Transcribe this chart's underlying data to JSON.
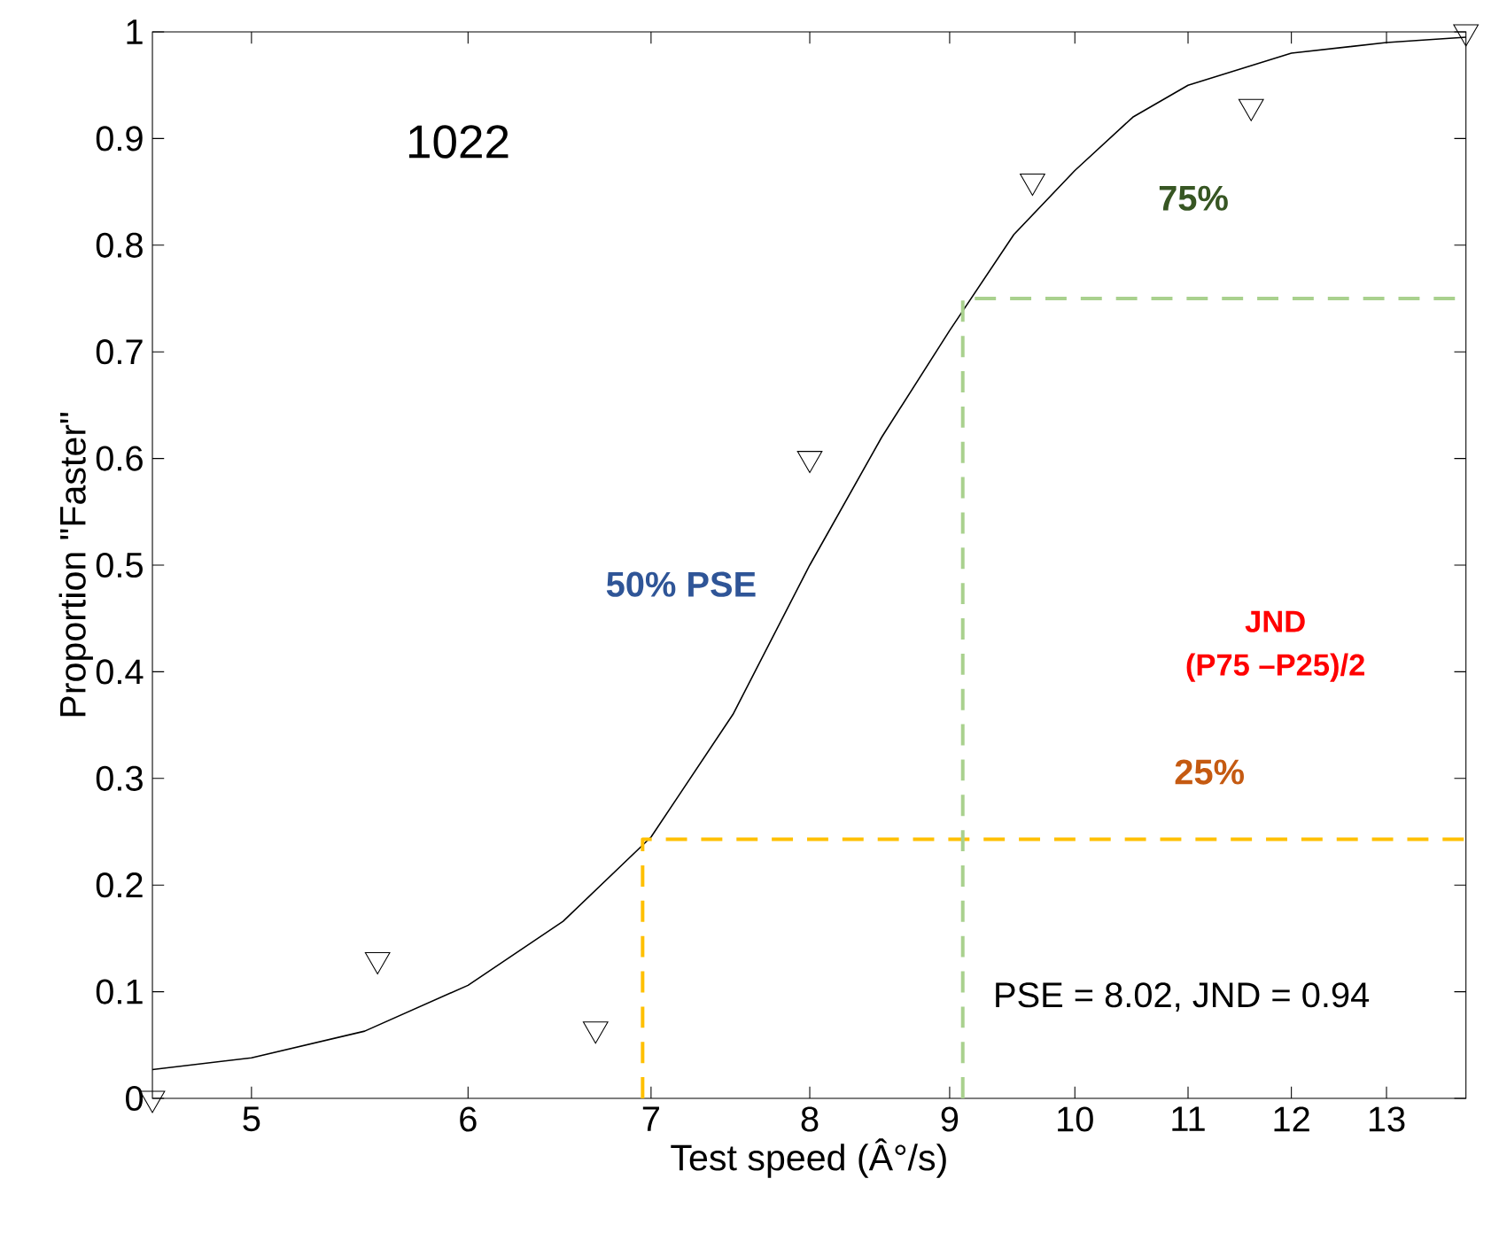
{
  "chart_data": {
    "type": "scatter",
    "xlabel": "Test speed (Â°/s)",
    "ylabel": "Proportion \"Faster\"",
    "log": "x",
    "xlim": [
      4.6,
      13.9
    ],
    "ylim": [
      0,
      1
    ],
    "xticks": [
      5,
      6,
      7,
      8,
      9,
      10,
      11,
      12,
      13
    ],
    "yticks": [
      0,
      0.1,
      0.2,
      0.3,
      0.4,
      0.5,
      0.6,
      0.7,
      0.8,
      0.9,
      1
    ],
    "marker": "triangle",
    "series": [
      {
        "type": "scatter",
        "color": "#000000",
        "x": [
          4.6,
          5.56,
          6.68,
          8.0,
          9.65,
          11.6,
          13.9
        ],
        "values": [
          0,
          0.13,
          0.065,
          0.6,
          0.86,
          0.93,
          1.0
        ]
      },
      {
        "type": "line",
        "color": "#000000",
        "marker": "none",
        "x": [
          4.6,
          5,
          5.5,
          6,
          6.5,
          7,
          7.5,
          8,
          8.5,
          9,
          9.5,
          10,
          10.5,
          11,
          12,
          13,
          13.9
        ],
        "values": [
          0.027,
          0.038,
          0.063,
          0.106,
          0.166,
          0.245,
          0.36,
          0.5,
          0.62,
          0.72,
          0.81,
          0.87,
          0.92,
          0.95,
          0.98,
          0.99,
          0.995
        ]
      },
      {
        "type": "line",
        "color": "#ffc000",
        "marker": "none",
        "line_style": "dashed",
        "x": [
          6.95,
          6.95,
          13.9
        ],
        "values": [
          0,
          0.243,
          0.243
        ]
      },
      {
        "type": "line",
        "color": "#a9d18e",
        "marker": "none",
        "line_style": "dashed",
        "x": [
          9.1,
          9.1,
          13.9
        ],
        "values": [
          0,
          0.75,
          0.75
        ]
      }
    ],
    "annotations": [
      "1022",
      "75%",
      "50% PSE",
      "JND",
      "(P75 –P25)/2",
      "25%",
      "PSE =  8.02, JND =  0.94"
    ]
  }
}
